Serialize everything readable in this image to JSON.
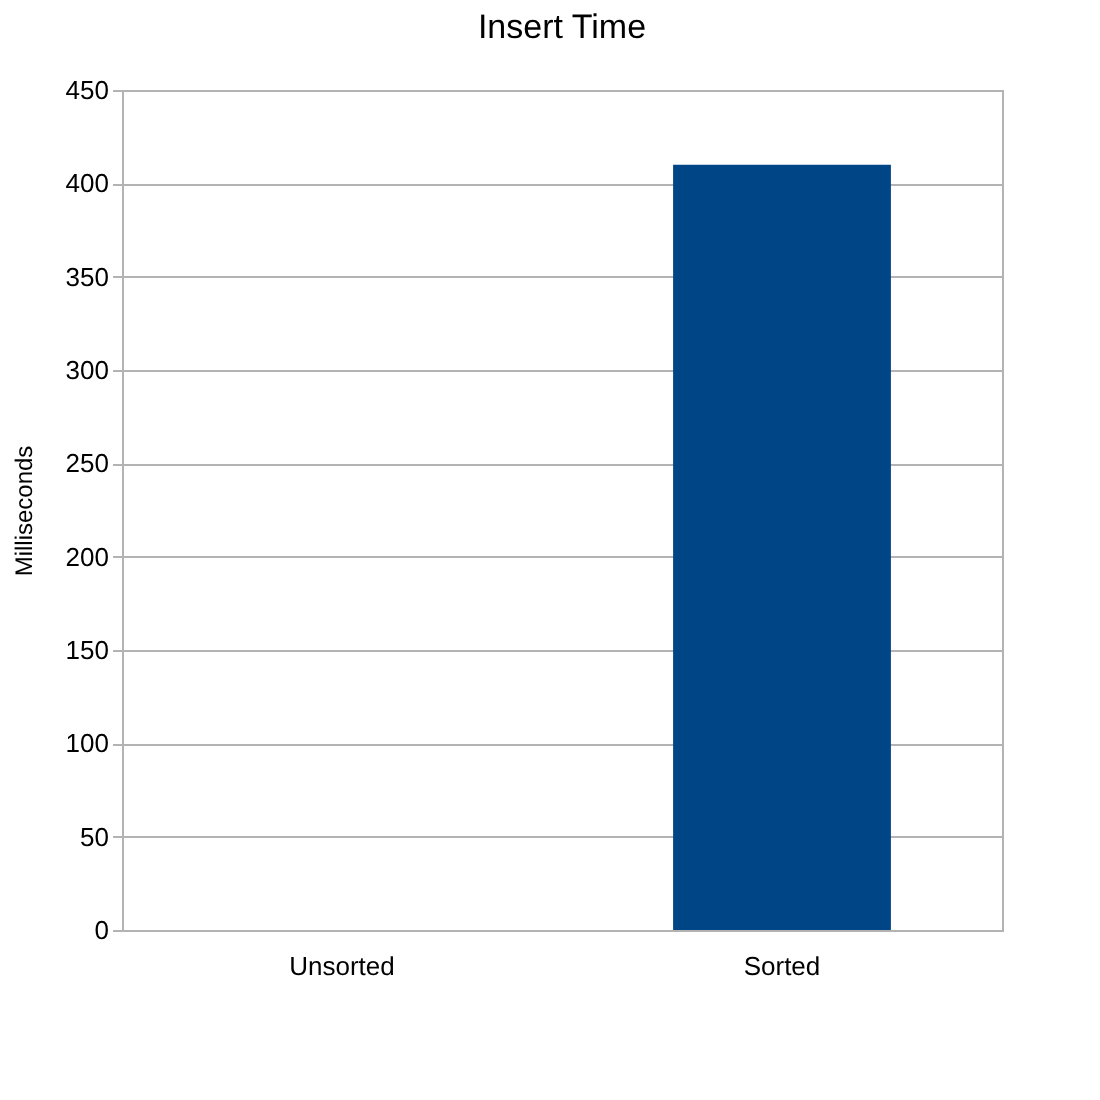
{
  "chart_data": {
    "type": "bar",
    "title": "Insert Time",
    "ylabel": "Milliseconds",
    "categories": [
      "Unsorted",
      "Sorted"
    ],
    "values": [
      0,
      410
    ],
    "color": "#004586",
    "ylim": [
      0,
      450
    ],
    "yticks": [
      0,
      50,
      100,
      150,
      200,
      250,
      300,
      350,
      400,
      450
    ],
    "grid": "y"
  }
}
